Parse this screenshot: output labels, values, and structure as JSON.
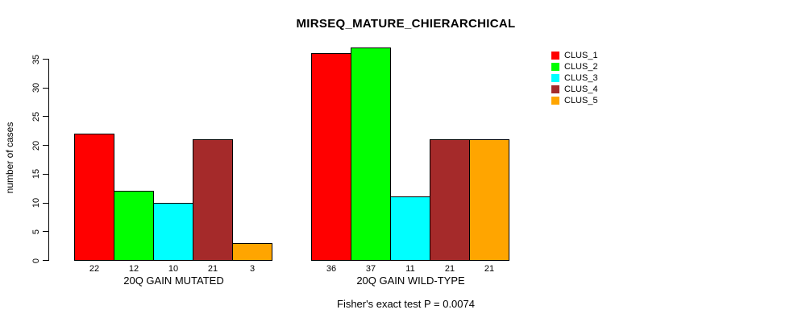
{
  "chart_data": {
    "type": "bar",
    "title": "MIRSEQ_MATURE_CHIERARCHICAL",
    "ylabel": "number of cases",
    "xlabel": "",
    "ylim": [
      0,
      37
    ],
    "yticks": [
      0,
      5,
      10,
      15,
      20,
      25,
      30,
      35
    ],
    "grid": false,
    "legend_position": "top-right",
    "categories": [
      "20Q GAIN MUTATED",
      "20Q GAIN WILD-TYPE"
    ],
    "series": [
      {
        "name": "CLUS_1",
        "color": "#ff0000",
        "values": [
          22,
          36
        ]
      },
      {
        "name": "CLUS_2",
        "color": "#00ff00",
        "values": [
          12,
          37
        ]
      },
      {
        "name": "CLUS_3",
        "color": "#00ffff",
        "values": [
          10,
          11
        ]
      },
      {
        "name": "CLUS_4",
        "color": "#a52a2a",
        "values": [
          21,
          21
        ]
      },
      {
        "name": "CLUS_5",
        "color": "#ffa500",
        "values": [
          3,
          21
        ]
      }
    ],
    "bar_value_labels": [
      [
        22,
        12,
        10,
        21,
        3
      ],
      [
        36,
        37,
        11,
        21,
        21
      ]
    ],
    "annotation": "Fisher's exact test P = 0.0074"
  }
}
